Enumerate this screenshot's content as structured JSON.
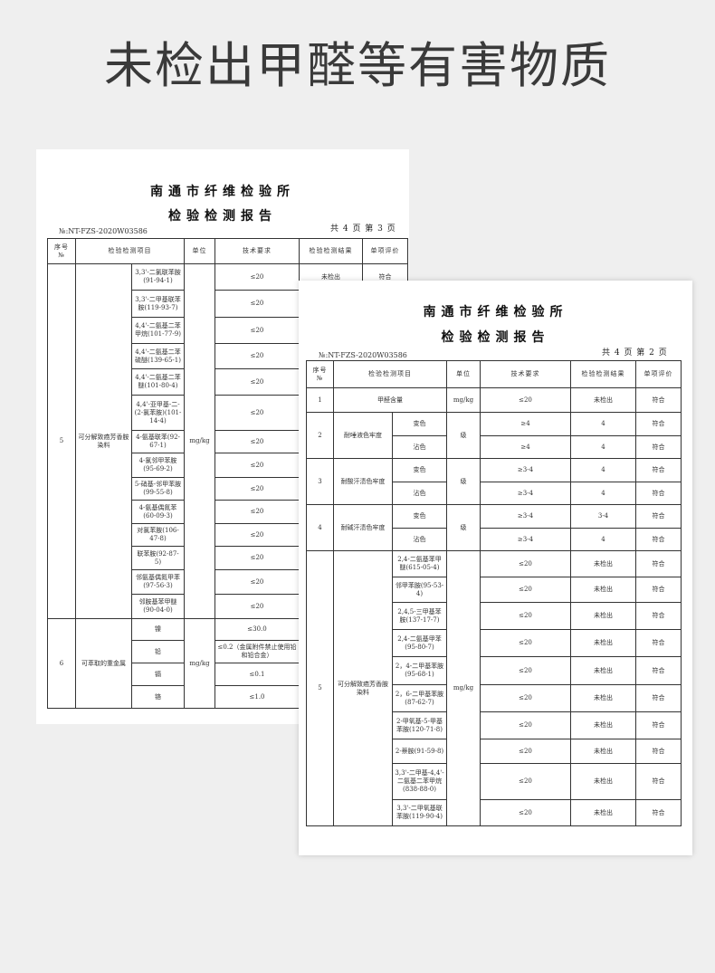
{
  "headline": "未检出甲醛等有害物质",
  "doc1": {
    "title1": "南通市纤维检验所",
    "title2": "检验检测报告",
    "number": "№:NT-FZS-2020W03586",
    "pages": "共 4 页 第 3 页",
    "headers": [
      "序号\n№",
      "检验检测项目",
      "单位",
      "技术要求",
      "检验检测结果",
      "单项评价"
    ],
    "groups": [
      {
        "no": "5",
        "name": "可分解致癌芳香胺染料",
        "unit": "mg/kg",
        "items": [
          {
            "sub": "3,3'-二氯联苯胺(91-94-1)",
            "req": "≤20",
            "result": "未检出",
            "verdict": "符合"
          },
          {
            "sub": "3,3'-二甲基联苯胺(119-93-7)",
            "req": "≤20"
          },
          {
            "sub": "4,4'-二氨基二苯甲烷(101-77-9)",
            "req": "≤20"
          },
          {
            "sub": "4,4'-二氨基二苯硫醚(139-65-1)",
            "req": "≤20"
          },
          {
            "sub": "4,4'-二氨基二苯醚(101-80-4)",
            "req": "≤20"
          },
          {
            "sub": "4,4'-亚甲基-二-(2-氯苯胺)(101-14-4)",
            "req": "≤20"
          },
          {
            "sub": "4-氨基联苯(92-67-1)",
            "req": "≤20"
          },
          {
            "sub": "4-氯邻甲苯胺(95-69-2)",
            "req": "≤20"
          },
          {
            "sub": "5-硝基-邻甲苯胺(99-55-8)",
            "req": "≤20"
          },
          {
            "sub": "4-氨基偶氮苯(60-09-3)",
            "req": "≤20"
          },
          {
            "sub": "对氯苯胺(106-47-8)",
            "req": "≤20"
          },
          {
            "sub": "联苯胺(92-87-5)",
            "req": "≤20"
          },
          {
            "sub": "邻氨基偶氮甲苯(97-56-3)",
            "req": "≤20"
          },
          {
            "sub": "邻胺基苯甲醚(90-04-0)",
            "req": "≤20"
          }
        ]
      },
      {
        "no": "6",
        "name": "可萃取的重金属",
        "unit": "mg/kg",
        "items": [
          {
            "sub": "镍",
            "req": "≤30.0"
          },
          {
            "sub": "铅",
            "req": "≤0.2（金属附件禁止使用铅和铅合金）"
          },
          {
            "sub": "镉",
            "req": "≤0.1"
          },
          {
            "sub": "铬",
            "req": "≤1.0"
          }
        ]
      }
    ]
  },
  "doc2": {
    "title1": "南通市纤维检验所",
    "title2": "检验检测报告",
    "number": "№:NT-FZS-2020W03586",
    "pages": "共 4 页 第 2 页",
    "headers": [
      "序号\n№",
      "检验检测项目",
      "单位",
      "技术要求",
      "检验检测结果",
      "单项评价"
    ],
    "groups": [
      {
        "no": "1",
        "name": "甲醛含量",
        "unit": "mg/kg",
        "items": [
          {
            "req": "≤20",
            "result": "未检出",
            "verdict": "符合"
          }
        ]
      },
      {
        "no": "2",
        "name": "耐唾液色牢度",
        "unit": "级",
        "items": [
          {
            "sub": "变色",
            "req": "≥4",
            "result": "4",
            "verdict": "符合"
          },
          {
            "sub": "沾色",
            "req": "≥4",
            "result": "4",
            "verdict": "符合"
          }
        ]
      },
      {
        "no": "3",
        "name": "耐酸汗渍色牢度",
        "unit": "级",
        "items": [
          {
            "sub": "变色",
            "req": "≥3-4",
            "result": "4",
            "verdict": "符合"
          },
          {
            "sub": "沾色",
            "req": "≥3-4",
            "result": "4",
            "verdict": "符合"
          }
        ]
      },
      {
        "no": "4",
        "name": "耐碱汗渍色牢度",
        "unit": "级",
        "items": [
          {
            "sub": "变色",
            "req": "≥3-4",
            "result": "3-4",
            "verdict": "符合"
          },
          {
            "sub": "沾色",
            "req": "≥3-4",
            "result": "4",
            "verdict": "符合"
          }
        ]
      },
      {
        "no": "5",
        "name": "可分解致癌芳香胺染料",
        "unit": "mg/kg",
        "items": [
          {
            "sub": "2,4-二氨基苯甲醚(615-05-4)",
            "req": "≤20",
            "result": "未检出",
            "verdict": "符合"
          },
          {
            "sub": "邻甲苯胺(95-53-4)",
            "req": "≤20",
            "result": "未检出",
            "verdict": "符合"
          },
          {
            "sub": "2,4,5-三甲基苯胺(137-17-7)",
            "req": "≤20",
            "result": "未检出",
            "verdict": "符合"
          },
          {
            "sub": "2,4-二氨基甲苯(95-80-7)",
            "req": "≤20",
            "result": "未检出",
            "verdict": "符合"
          },
          {
            "sub": "2，4-二甲基苯胺(95-68-1)",
            "req": "≤20",
            "result": "未检出",
            "verdict": "符合"
          },
          {
            "sub": "2，6-二甲基苯胺(87-62-7)",
            "req": "≤20",
            "result": "未检出",
            "verdict": "符合"
          },
          {
            "sub": "2-甲氧基-5-甲基苯胺(120-71-8)",
            "req": "≤20",
            "result": "未检出",
            "verdict": "符合"
          },
          {
            "sub": "2-萘胺(91-59-8)",
            "req": "≤20",
            "result": "未检出",
            "verdict": "符合"
          },
          {
            "sub": "3,3'-二甲基-4,4'-二氨基二苯甲烷(838-88-0)",
            "req": "≤20",
            "result": "未检出",
            "verdict": "符合"
          },
          {
            "sub": "3,3'-二甲氧基联苯胺(119-90-4)",
            "req": "≤20",
            "result": "未检出",
            "verdict": "符合"
          }
        ]
      }
    ]
  }
}
